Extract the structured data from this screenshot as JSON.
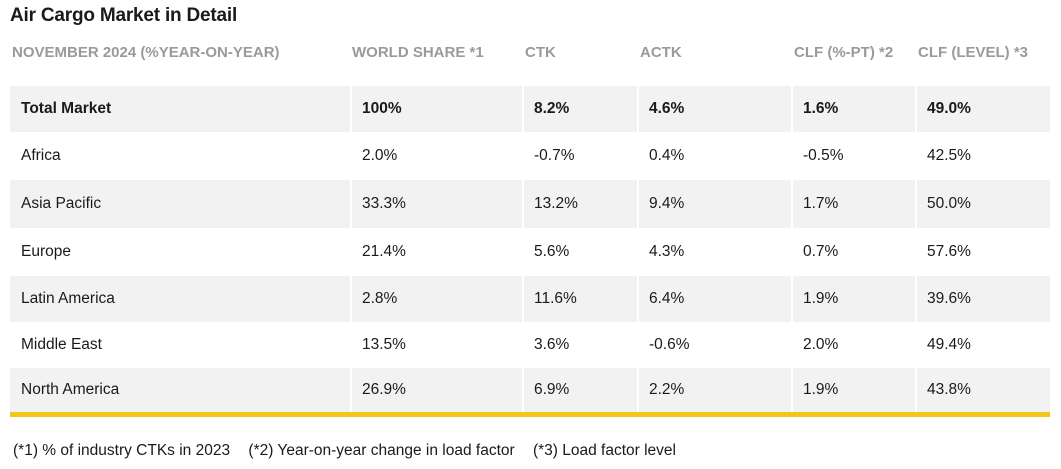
{
  "title": "Air Cargo Market in Detail",
  "columns": [
    "NOVEMBER 2024 (%YEAR-ON-YEAR)",
    "WORLD SHARE *1",
    "CTK",
    "ACTK",
    "CLF (%-PT) *2",
    "CLF (LEVEL) *3"
  ],
  "rows": [
    {
      "region": "Total Market",
      "world_share": "100%",
      "ctk": "8.2%",
      "actk": "4.6%",
      "clf_pt": "1.6%",
      "clf_level": "49.0%"
    },
    {
      "region": "Africa",
      "world_share": "2.0%",
      "ctk": "-0.7%",
      "actk": "0.4%",
      "clf_pt": "-0.5%",
      "clf_level": "42.5%"
    },
    {
      "region": "Asia Pacific",
      "world_share": "33.3%",
      "ctk": "13.2%",
      "actk": "9.4%",
      "clf_pt": "1.7%",
      "clf_level": "50.0%"
    },
    {
      "region": "Europe",
      "world_share": "21.4%",
      "ctk": "5.6%",
      "actk": "4.3%",
      "clf_pt": "0.7%",
      "clf_level": "57.6%"
    },
    {
      "region": "Latin America",
      "world_share": "2.8%",
      "ctk": "11.6%",
      "actk": "6.4%",
      "clf_pt": "1.9%",
      "clf_level": "39.6%"
    },
    {
      "region": "Middle East",
      "world_share": "13.5%",
      "ctk": "3.6%",
      "actk": "-0.6%",
      "clf_pt": "2.0%",
      "clf_level": "49.4%"
    },
    {
      "region": "North America",
      "world_share": "26.9%",
      "ctk": "6.9%",
      "actk": "2.2%",
      "clf_pt": "1.9%",
      "clf_level": "43.8%"
    }
  ],
  "footnotes": [
    "(*1) % of industry CTKs in 2023",
    "(*2) Year-on-year change in load factor",
    "(*3) Load factor level"
  ],
  "colors": {
    "accent_bar": "#f5c518",
    "row_shade": "#f2f2f2",
    "header_text": "#9a9a9a"
  }
}
